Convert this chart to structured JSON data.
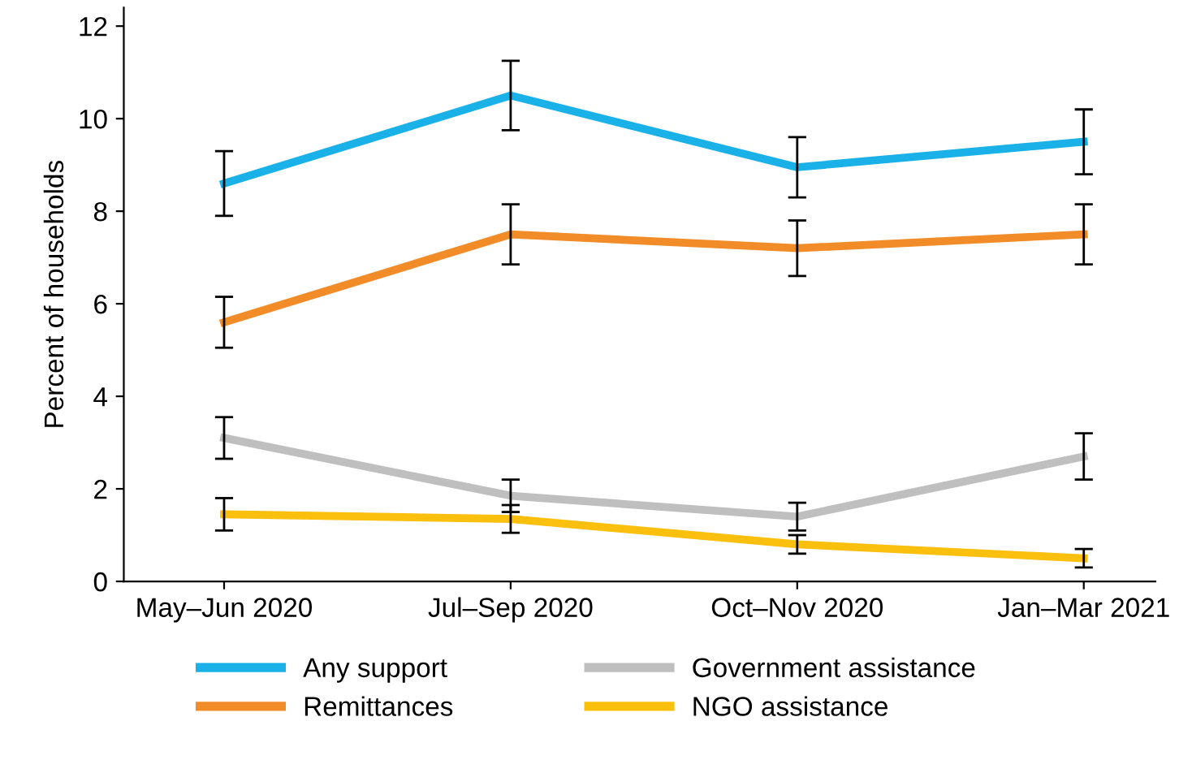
{
  "chart_data": {
    "type": "line",
    "ylabel": "Percent of households",
    "categories": [
      "May–Jun 2020",
      "Jul–Sep 2020",
      "Oct–Nov 2020",
      "Jan–Mar 2021"
    ],
    "series": [
      {
        "name": "Any support",
        "color": "#1ab0e8",
        "values": [
          8.6,
          10.5,
          8.95,
          9.5
        ],
        "errors": [
          0.7,
          0.75,
          0.65,
          0.7
        ]
      },
      {
        "name": "Remittances",
        "color": "#f28c28",
        "values": [
          5.6,
          7.5,
          7.2,
          7.5
        ],
        "errors": [
          0.55,
          0.65,
          0.6,
          0.65
        ]
      },
      {
        "name": "Government assistance",
        "color": "#bfbfbf",
        "values": [
          3.1,
          1.85,
          1.4,
          2.7
        ],
        "errors": [
          0.45,
          0.35,
          0.3,
          0.5
        ]
      },
      {
        "name": "NGO assistance",
        "color": "#fbbf0e",
        "values": [
          1.45,
          1.35,
          0.8,
          0.5
        ],
        "errors": [
          0.35,
          0.3,
          0.2,
          0.2
        ]
      }
    ],
    "ylim": [
      0,
      12.4
    ],
    "yticks": [
      0,
      2,
      4,
      6,
      8,
      10,
      12
    ],
    "grid": false,
    "legend": "bottom",
    "marker": "none",
    "line_style": "solid"
  }
}
